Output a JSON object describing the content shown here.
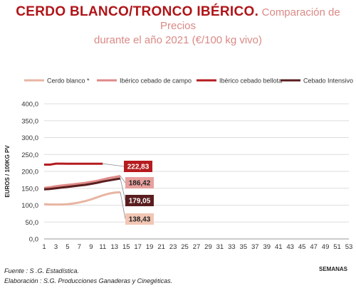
{
  "title": {
    "main": "CERDO BLANCO/TRONCO IBÉRICO.",
    "sub1": "Comparación de Precios",
    "sub2": "durante el año 2021 (€/100 kg vivo)"
  },
  "footer": {
    "source": "Fuente :  S .G. Estadística.",
    "elaboration": "Elaboración : S.G. Producciones Ganaderas y Cinegéticas."
  },
  "chart_data": {
    "type": "line",
    "xlabel": "SEMANAS",
    "ylabel": "EUROS / 100KG PV",
    "ylim": [
      0,
      400
    ],
    "yticks": [
      "0,0",
      "50,0",
      "100,0",
      "150,0",
      "200,0",
      "250,0",
      "300,0",
      "350,0",
      "400,0"
    ],
    "xlim": [
      1,
      53
    ],
    "xticks": [
      1,
      3,
      5,
      7,
      9,
      11,
      13,
      15,
      17,
      19,
      21,
      23,
      25,
      27,
      29,
      31,
      33,
      35,
      37,
      39,
      41,
      43,
      45,
      47,
      49,
      51,
      53
    ],
    "legend_position": "top",
    "grid": "horizontal",
    "series": [
      {
        "name": "Cerdo blanco *",
        "color": "#e8b5a2",
        "x": [
          1,
          2,
          3,
          4,
          5,
          6,
          7,
          8,
          9,
          10,
          11,
          12,
          13,
          14
        ],
        "values": [
          103,
          102,
          102,
          102,
          103,
          105,
          108,
          112,
          117,
          123,
          129,
          134,
          137,
          138.43
        ],
        "end_label": "138,43",
        "label_bg": "#f2c6b4",
        "label_color": "#222222"
      },
      {
        "name": "Ibérico cebado de campo",
        "color": "#e08a88",
        "x": [
          1,
          2,
          3,
          4,
          5,
          6,
          7,
          8,
          9,
          10,
          11,
          12,
          13,
          14
        ],
        "values": [
          151,
          153,
          156,
          158,
          160,
          162,
          164,
          166,
          169,
          172,
          176,
          180,
          183,
          186.42
        ],
        "end_label": "186,42",
        "label_bg": "#e8a09e",
        "label_color": "#222222"
      },
      {
        "name": "Ibérico cebado bellota",
        "color": "#b51c1f",
        "x": [
          1,
          2,
          3,
          4,
          5,
          6,
          7,
          8,
          9,
          10,
          11
        ],
        "values": [
          220,
          220,
          223,
          223,
          222.83,
          222.83,
          222.83,
          222.83,
          222.83,
          222.83,
          222.83
        ],
        "end_label": "222,83",
        "label_bg": "#b51c1f",
        "label_color": "#ffffff"
      },
      {
        "name": "Cebado Intensivo",
        "color": "#5a1d1f",
        "x": [
          1,
          2,
          3,
          4,
          5,
          6,
          7,
          8,
          9,
          10,
          11,
          12,
          13,
          14
        ],
        "values": [
          147,
          148,
          150,
          152,
          154,
          156,
          158,
          160,
          163,
          166,
          170,
          173,
          176,
          179.05
        ],
        "end_label": "179,05",
        "label_bg": "#5a1d1f",
        "label_color": "#ffffff"
      }
    ]
  }
}
